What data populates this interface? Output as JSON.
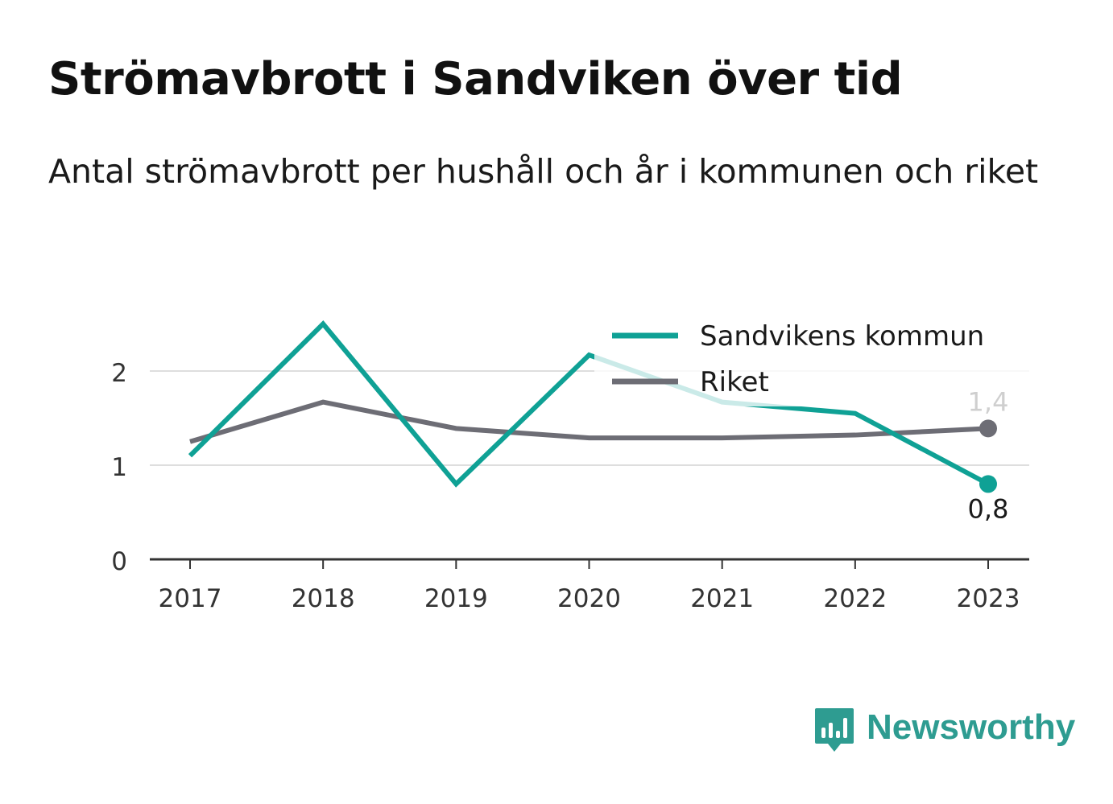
{
  "title": "Strömavbrott i Sandviken över tid",
  "subtitle": "Antal strömavbrott per hushåll och år i kommunen och riket",
  "brand": {
    "name": "Newsworthy",
    "icon": "newsworthy-logo-icon",
    "color": "#2e9c91"
  },
  "chart_data": {
    "type": "line",
    "x": [
      "2017",
      "2018",
      "2019",
      "2020",
      "2021",
      "2022",
      "2023"
    ],
    "ylim": [
      0,
      2.5
    ],
    "yticks": [
      "0",
      "1",
      "2"
    ],
    "grid": true,
    "legend_position": "top-right",
    "series": [
      {
        "name": "Sandvikens kommun",
        "color": "#0fa195",
        "values": [
          1.1,
          2.5,
          0.8,
          2.17,
          1.67,
          1.55,
          0.8
        ],
        "end_label": "0,8"
      },
      {
        "name": "Riket",
        "color": "#6d6d75",
        "values": [
          1.25,
          1.67,
          1.39,
          1.29,
          1.29,
          1.32,
          1.39
        ],
        "end_label": "1,4"
      }
    ]
  }
}
